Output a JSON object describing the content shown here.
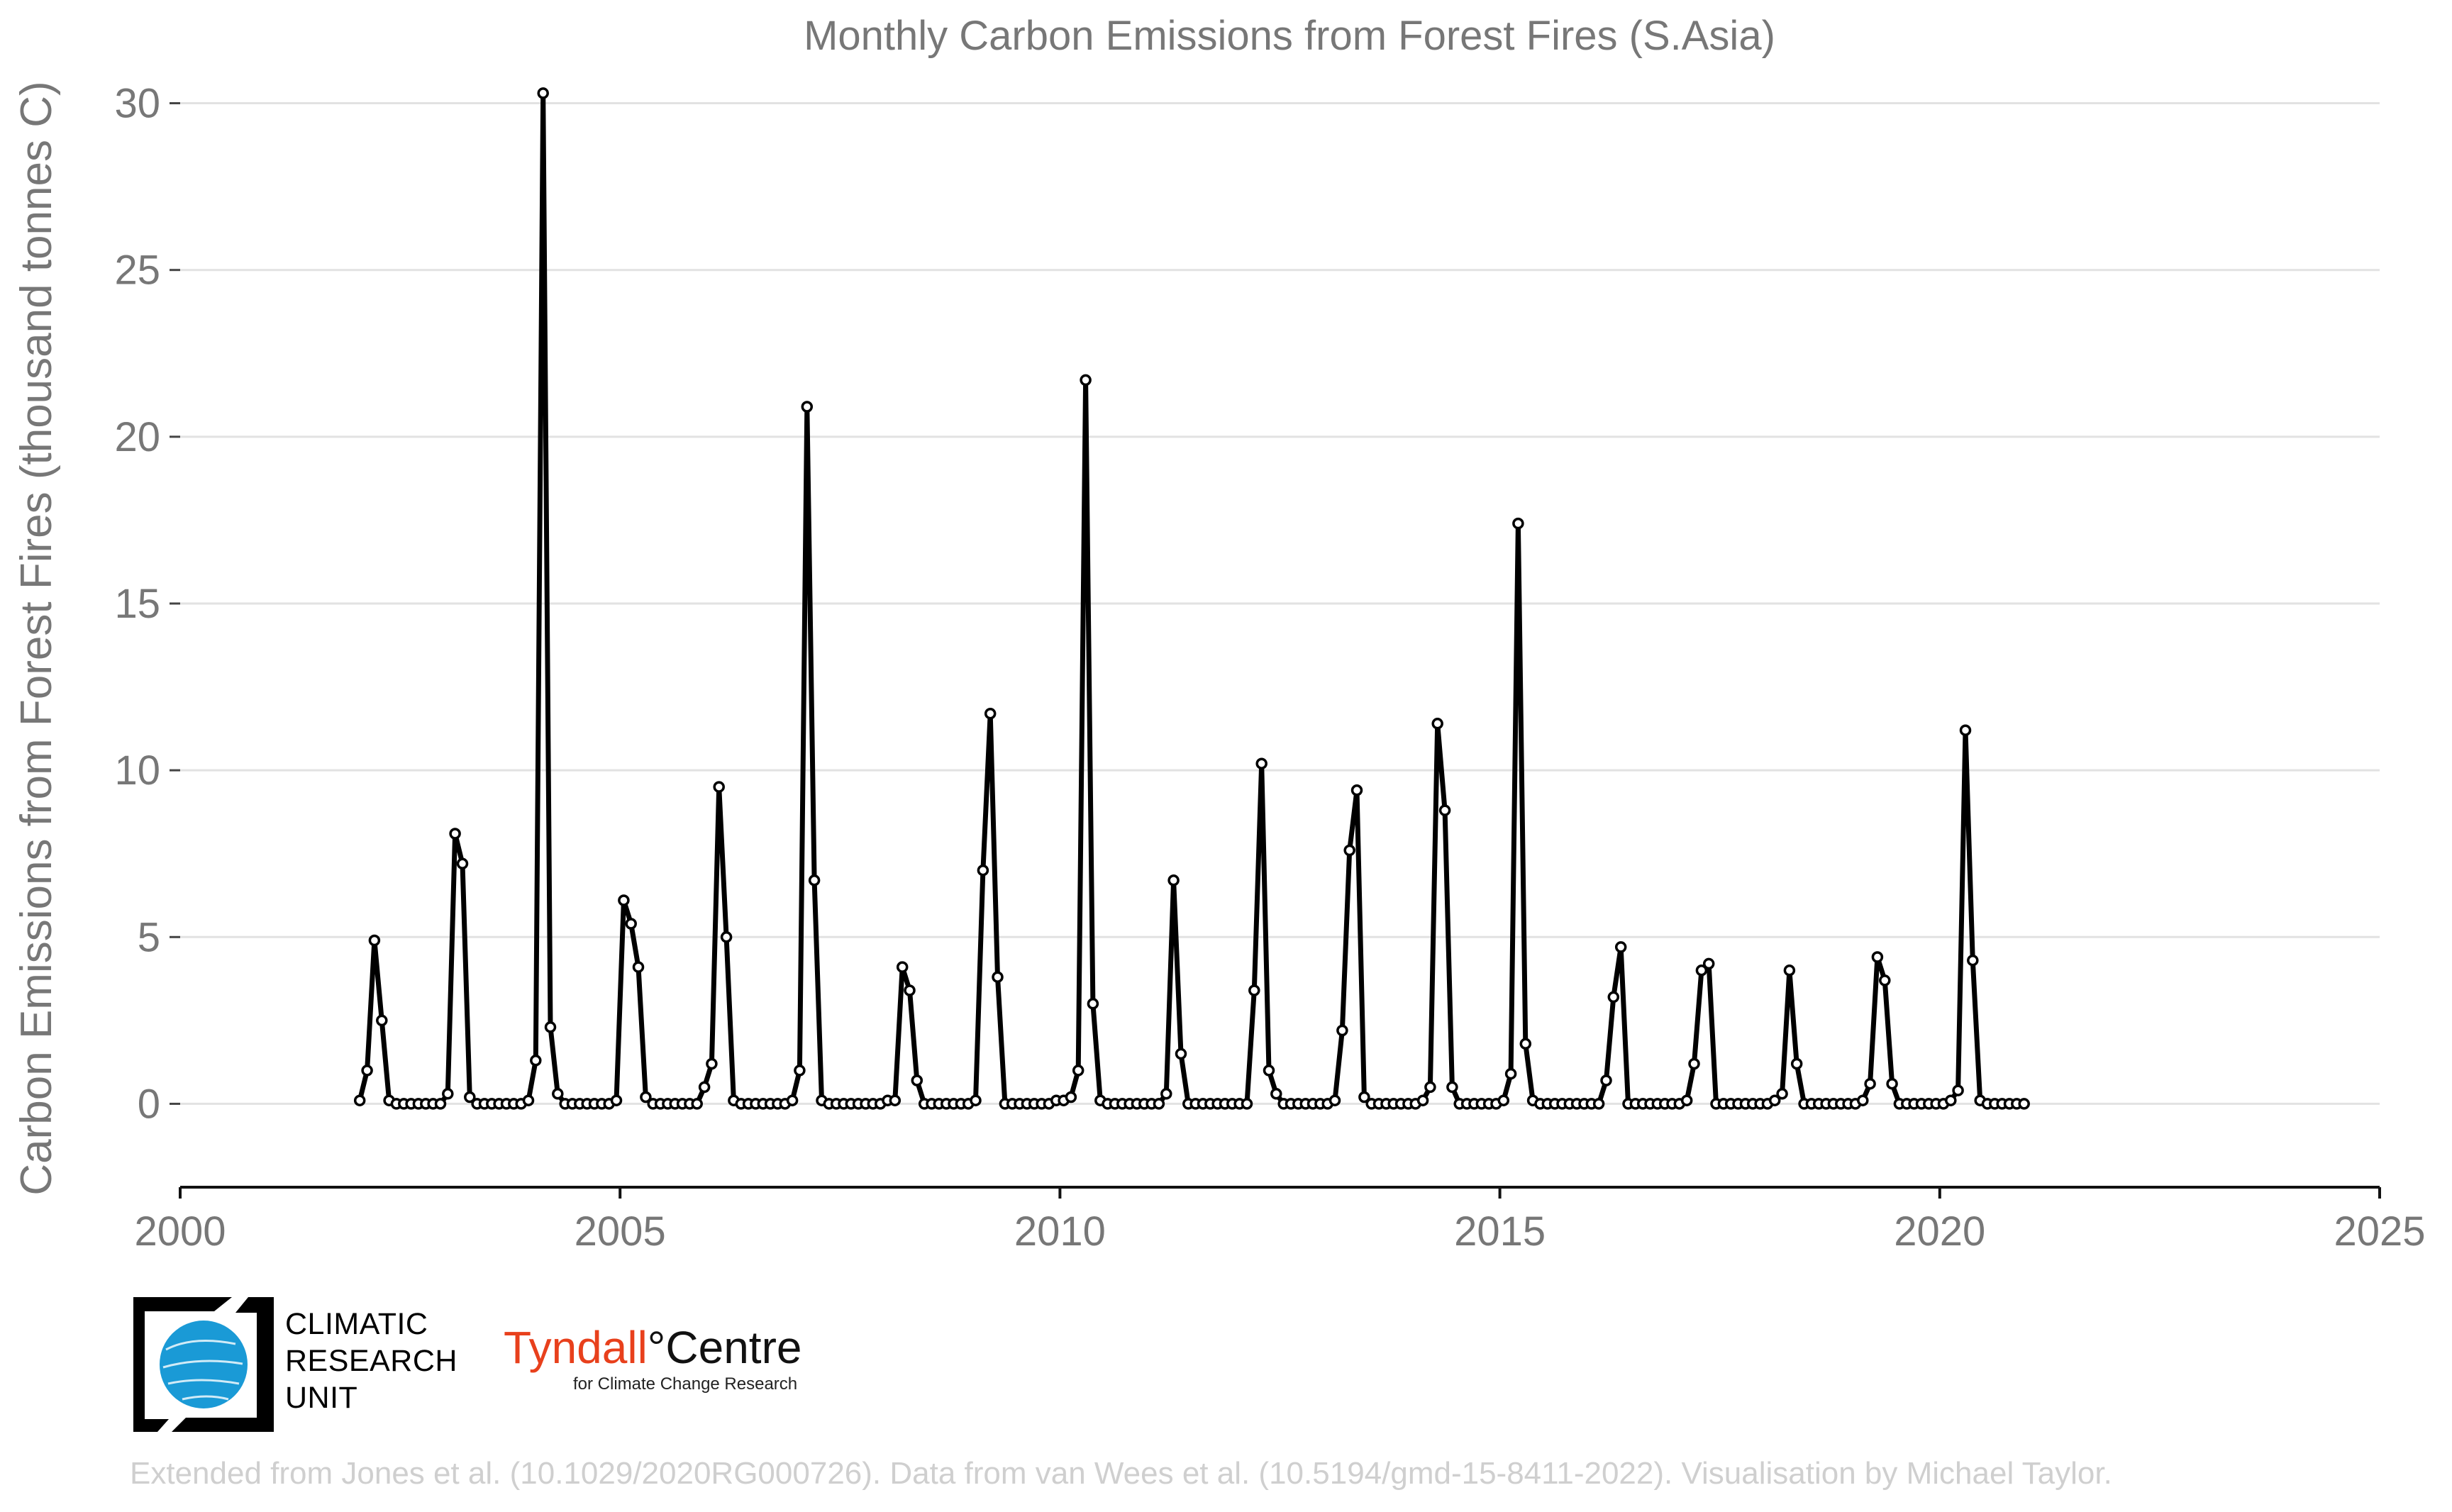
{
  "chart_data": {
    "type": "line",
    "title": "Monthly Carbon Emissions from Forest Fires (S.Asia)",
    "xlabel": "",
    "ylabel": "Carbon Emissions from Forest Fires (thousand tonnes C)",
    "xlim": [
      2000,
      2025
    ],
    "ylim": [
      -2.5,
      31.5
    ],
    "xticks": [
      2000,
      2005,
      2010,
      2015,
      2020,
      2025
    ],
    "xtick_labels": [
      "2000",
      "2005",
      "2010",
      "2015",
      "2020",
      "2025"
    ],
    "yticks": [
      0,
      5,
      10,
      15,
      20,
      25,
      30
    ],
    "ytick_labels": [
      "0",
      "5",
      "10",
      "15",
      "20",
      "25",
      "30"
    ],
    "grid": "horizontal",
    "line_color": "#000000",
    "series": [
      {
        "start": [
          2002,
          1
        ],
        "values": [
          0.1,
          1.0,
          4.9,
          2.5,
          0.1,
          0.0,
          0.0,
          0.0,
          0.0,
          0.0,
          0.0,
          0.0,
          0.3,
          8.1,
          7.2,
          0.2,
          0.0,
          0.0,
          0.0,
          0.0,
          0.0,
          0.0,
          0.0,
          0.1,
          1.3,
          30.3,
          2.3,
          0.3,
          0.0,
          0.0,
          0.0,
          0.0,
          0.0,
          0.0,
          0.0,
          0.1,
          6.1,
          5.4,
          4.1,
          0.2,
          0.0,
          0.0,
          0.0,
          0.0,
          0.0,
          0.0,
          0.0,
          0.5,
          1.2,
          9.5,
          5.0,
          0.1,
          0.0,
          0.0,
          0.0,
          0.0,
          0.0,
          0.0,
          0.0,
          0.1,
          1.0,
          20.9,
          6.7,
          0.1,
          0.0,
          0.0,
          0.0,
          0.0,
          0.0,
          0.0,
          0.0,
          0.0,
          0.1,
          0.1,
          4.1,
          3.4,
          0.7,
          0.0,
          0.0,
          0.0,
          0.0,
          0.0,
          0.0,
          0.0,
          0.1,
          7.0,
          11.7,
          3.8,
          0.0,
          0.0,
          0.0,
          0.0,
          0.0,
          0.0,
          0.0,
          0.1,
          0.1,
          0.2,
          1.0,
          21.7,
          3.0,
          0.1,
          0.0,
          0.0,
          0.0,
          0.0,
          0.0,
          0.0,
          0.0,
          0.0,
          0.3,
          6.7,
          1.5,
          0.0,
          0.0,
          0.0,
          0.0,
          0.0,
          0.0,
          0.0,
          0.0,
          0.0,
          3.4,
          10.2,
          1.0,
          0.3,
          0.0,
          0.0,
          0.0,
          0.0,
          0.0,
          0.0,
          0.0,
          0.1,
          2.2,
          7.6,
          9.4,
          0.2,
          0.0,
          0.0,
          0.0,
          0.0,
          0.0,
          0.0,
          0.0,
          0.1,
          0.5,
          11.4,
          8.8,
          0.5,
          0.0,
          0.0,
          0.0,
          0.0,
          0.0,
          0.0,
          0.1,
          0.9,
          17.4,
          1.8,
          0.1,
          0.0,
          0.0,
          0.0,
          0.0,
          0.0,
          0.0,
          0.0,
          0.0,
          0.0,
          0.7,
          3.2,
          4.7,
          0.0,
          0.0,
          0.0,
          0.0,
          0.0,
          0.0,
          0.0,
          0.0,
          0.1,
          1.2,
          4.0,
          4.2,
          0.0,
          0.0,
          0.0,
          0.0,
          0.0,
          0.0,
          0.0,
          0.0,
          0.1,
          0.3,
          4.0,
          1.2,
          0.0,
          0.0,
          0.0,
          0.0,
          0.0,
          0.0,
          0.0,
          0.0,
          0.1,
          0.6,
          4.4,
          3.7,
          0.6,
          0.0,
          0.0,
          0.0,
          0.0,
          0.0,
          0.0,
          0.0,
          0.1,
          0.4,
          11.2,
          4.3,
          0.1,
          0.0,
          0.0,
          0.0,
          0.0,
          0.0,
          0.0
        ]
      }
    ]
  },
  "logos": {
    "cru": [
      "CLIMATIC",
      "RESEARCH",
      "UNIT"
    ],
    "tyndall_main_red": "Tyndall",
    "tyndall_main_black": "°Centre",
    "tyndall_sub": "for Climate Change Research"
  },
  "credit": "Extended from Jones et al. (10.1029/2020RG000726). Data from van Wees et al. (10.5194/gmd-15-8411-2022). Visualisation by Michael Taylor."
}
